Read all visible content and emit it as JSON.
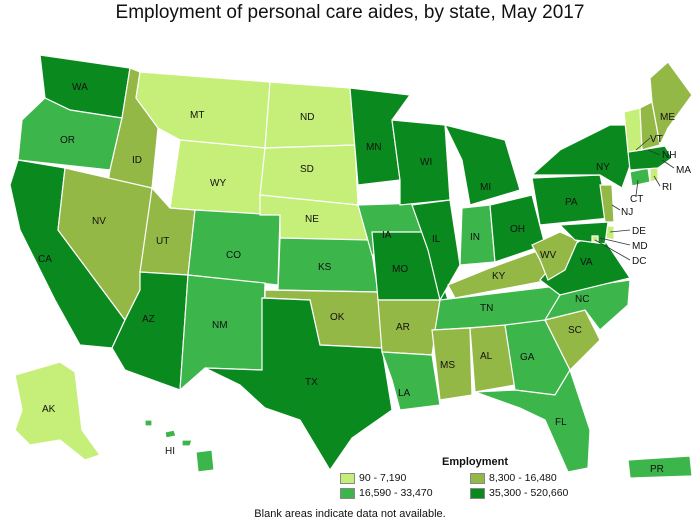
{
  "title": "Employment of personal care aides, by state, May 2017",
  "colors": {
    "c1": "#c6ef7a",
    "c2": "#94b846",
    "c3": "#3cb54a",
    "c4": "#0a8a1e",
    "stroke": "#ffffff"
  },
  "legend": {
    "title": "Employment",
    "items": [
      {
        "label": "90 - 7,190",
        "color": "#c6ef7a"
      },
      {
        "label": "8,300 - 16,480",
        "color": "#94b846"
      },
      {
        "label": "16,590 - 33,470",
        "color": "#3cb54a"
      },
      {
        "label": "35,300 - 520,660",
        "color": "#0a8a1e"
      }
    ]
  },
  "footnote": "Blank areas indicate data not available.",
  "states": [
    {
      "code": "WA",
      "bin": 4
    },
    {
      "code": "OR",
      "bin": 3
    },
    {
      "code": "CA",
      "bin": 4
    },
    {
      "code": "ID",
      "bin": 2
    },
    {
      "code": "NV",
      "bin": 2
    },
    {
      "code": "MT",
      "bin": 1
    },
    {
      "code": "WY",
      "bin": 1
    },
    {
      "code": "UT",
      "bin": 2
    },
    {
      "code": "AZ",
      "bin": 4
    },
    {
      "code": "CO",
      "bin": 3
    },
    {
      "code": "NM",
      "bin": 3
    },
    {
      "code": "ND",
      "bin": 1
    },
    {
      "code": "SD",
      "bin": 1
    },
    {
      "code": "NE",
      "bin": 1
    },
    {
      "code": "KS",
      "bin": 3
    },
    {
      "code": "OK",
      "bin": 2
    },
    {
      "code": "TX",
      "bin": 4
    },
    {
      "code": "MN",
      "bin": 4
    },
    {
      "code": "IA",
      "bin": 3
    },
    {
      "code": "MO",
      "bin": 4
    },
    {
      "code": "AR",
      "bin": 2
    },
    {
      "code": "LA",
      "bin": 3
    },
    {
      "code": "WI",
      "bin": 4
    },
    {
      "code": "IL",
      "bin": 4
    },
    {
      "code": "MI",
      "bin": 4
    },
    {
      "code": "IN",
      "bin": 3
    },
    {
      "code": "OH",
      "bin": 4
    },
    {
      "code": "KY",
      "bin": 2
    },
    {
      "code": "TN",
      "bin": 3
    },
    {
      "code": "MS",
      "bin": 2
    },
    {
      "code": "AL",
      "bin": 2
    },
    {
      "code": "GA",
      "bin": 3
    },
    {
      "code": "FL",
      "bin": 3
    },
    {
      "code": "SC",
      "bin": 2
    },
    {
      "code": "NC",
      "bin": 3
    },
    {
      "code": "VA",
      "bin": 4
    },
    {
      "code": "WV",
      "bin": 2
    },
    {
      "code": "PA",
      "bin": 4
    },
    {
      "code": "NY",
      "bin": 4
    },
    {
      "code": "NJ",
      "bin": 2
    },
    {
      "code": "DE",
      "bin": 1
    },
    {
      "code": "MD",
      "bin": 4
    },
    {
      "code": "DC",
      "bin": 1
    },
    {
      "code": "CT",
      "bin": 3
    },
    {
      "code": "RI",
      "bin": 1
    },
    {
      "code": "MA",
      "bin": 4
    },
    {
      "code": "VT",
      "bin": 1
    },
    {
      "code": "NH",
      "bin": 2
    },
    {
      "code": "ME",
      "bin": 2
    },
    {
      "code": "AK",
      "bin": 1
    },
    {
      "code": "HI",
      "bin": 3
    },
    {
      "code": "PR",
      "bin": 3
    }
  ]
}
